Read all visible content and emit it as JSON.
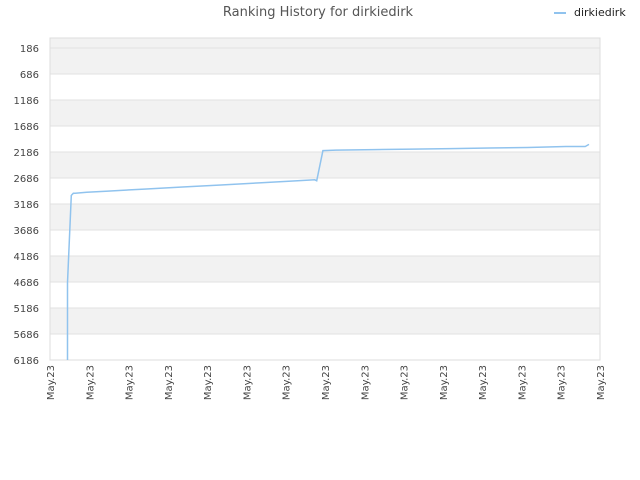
{
  "chart_data": {
    "type": "line",
    "title": "Ranking History for dirkiedirk",
    "xlabel": "",
    "ylabel": "",
    "y_inverted": true,
    "ylim": [
      186,
      6186
    ],
    "y_ticks": [
      "186",
      "686",
      "1186",
      "1686",
      "2186",
      "2686",
      "3186",
      "3686",
      "4186",
      "4686",
      "5186",
      "5686",
      "6186"
    ],
    "x_ticks": [
      "May.23",
      "May.23",
      "May.23",
      "May.23",
      "May.23",
      "May.23",
      "May.23",
      "May.23",
      "May.23",
      "May.23",
      "May.23",
      "May.23",
      "May.23",
      "May.23",
      "May.23"
    ],
    "legend": {
      "position": "top-right"
    },
    "grid": true,
    "series": [
      {
        "name": "dirkiedirk",
        "color": "#90c3ee",
        "x": [
          0.0,
          0.0,
          0.1,
          0.15,
          0.2,
          0.5,
          1.0,
          2.0,
          3.0,
          4.0,
          5.0,
          6.0,
          6.45,
          6.5,
          6.65,
          6.66,
          7.0,
          8.0,
          9.0,
          10.0,
          11.0,
          12.0,
          13.0,
          13.5,
          13.6
        ],
        "values": [
          6186,
          4700,
          3020,
          2980,
          2980,
          2960,
          2940,
          2900,
          2860,
          2820,
          2780,
          2740,
          2720,
          2740,
          2200,
          2160,
          2150,
          2140,
          2130,
          2120,
          2110,
          2100,
          2080,
          2080,
          2040
        ]
      }
    ]
  }
}
